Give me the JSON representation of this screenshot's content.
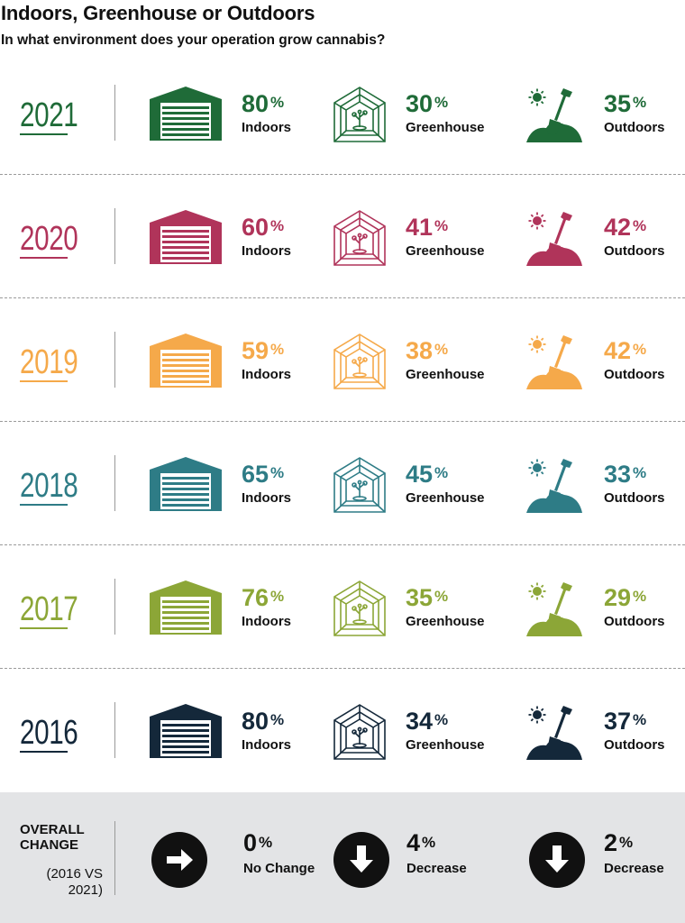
{
  "title": "Indoors, Greenhouse or Outdoors",
  "subtitle": "In what environment does your operation grow cannabis?",
  "labels": {
    "indoors": "Indoors",
    "greenhouse": "Greenhouse",
    "outdoors": "Outdoors",
    "percent_sign": "%"
  },
  "icons": {
    "indoors": "garage-icon",
    "greenhouse": "greenhouse-plant-icon",
    "outdoors": "sun-shovel-icon"
  },
  "chart_data": {
    "type": "table",
    "title": "Indoors, Greenhouse or Outdoors",
    "subtitle": "In what environment does your operation grow cannabis?",
    "columns": [
      "Indoors",
      "Greenhouse",
      "Outdoors"
    ],
    "rows": [
      {
        "year": "2021",
        "color": "#1f6b38",
        "values": [
          80,
          30,
          35
        ]
      },
      {
        "year": "2020",
        "color": "#b0345a",
        "values": [
          60,
          41,
          42
        ]
      },
      {
        "year": "2019",
        "color": "#f5a94a",
        "values": [
          59,
          38,
          42
        ]
      },
      {
        "year": "2018",
        "color": "#2e7c86",
        "values": [
          65,
          45,
          33
        ]
      },
      {
        "year": "2017",
        "color": "#8ca637",
        "values": [
          76,
          35,
          29
        ]
      },
      {
        "year": "2016",
        "color": "#14283a",
        "values": [
          80,
          34,
          37
        ]
      }
    ]
  },
  "summary": {
    "label_line1": "OVERALL",
    "label_line2": "CHANGE",
    "range_line1": "(2016 VS",
    "range_line2": "2021)",
    "items": [
      {
        "value": "0",
        "label": "No Change",
        "icon": "arrow-right-icon"
      },
      {
        "value": "4",
        "label": "Decrease",
        "icon": "arrow-down-icon"
      },
      {
        "value": "2",
        "label": "Decrease",
        "icon": "arrow-down-icon"
      }
    ]
  }
}
